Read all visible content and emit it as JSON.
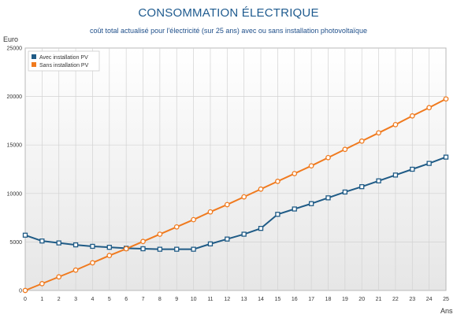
{
  "chart_data": {
    "type": "line",
    "title": "CONSOMMATION ÉLECTRIQUE",
    "subtitle": "coût total actualisé pour l'électricité (sur 25 ans) avec ou sans installation photovoltaïque",
    "xlabel": "Ans",
    "ylabel": "Euro",
    "x": [
      0,
      1,
      2,
      3,
      4,
      5,
      6,
      7,
      8,
      9,
      10,
      11,
      12,
      13,
      14,
      15,
      16,
      17,
      18,
      19,
      20,
      21,
      22,
      23,
      24,
      25
    ],
    "xlim": [
      0,
      25
    ],
    "ylim": [
      0,
      25000
    ],
    "yticks": [
      0,
      5000,
      10000,
      15000,
      20000,
      25000
    ],
    "ytick_labels": [
      "0",
      "5000",
      "10000",
      "15000",
      "20000",
      "25000"
    ],
    "xtick_labels": [
      "0",
      "1",
      "2",
      "3",
      "4",
      "5",
      "6",
      "7",
      "8",
      "9",
      "10",
      "11",
      "12",
      "13",
      "14",
      "15",
      "16",
      "17",
      "18",
      "19",
      "20",
      "21",
      "22",
      "23",
      "24",
      "25"
    ],
    "grid": true,
    "legend_position": "top-left",
    "series": [
      {
        "name": "Avec installation PV",
        "color": "#1f5b86",
        "marker": "square",
        "values": [
          5700,
          5100,
          4900,
          4700,
          4550,
          4450,
          4350,
          4300,
          4250,
          4250,
          4250,
          4800,
          5300,
          5800,
          6400,
          7850,
          8400,
          8950,
          9550,
          10150,
          10700,
          11300,
          11900,
          12500,
          13100,
          13750
        ]
      },
      {
        "name": "Sans installation PV",
        "color": "#f07a1e",
        "marker": "circle",
        "values": [
          0,
          700,
          1400,
          2100,
          2850,
          3600,
          4300,
          5050,
          5800,
          6550,
          7300,
          8100,
          8850,
          9650,
          10450,
          11250,
          12050,
          12850,
          13700,
          14550,
          15400,
          16250,
          17100,
          18000,
          18850,
          19750
        ]
      }
    ]
  }
}
